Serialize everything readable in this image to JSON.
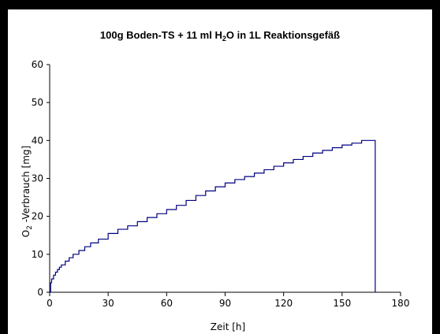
{
  "chart_data": {
    "type": "line",
    "title_main": "100g Boden-TS + 11 ml H",
    "title_sub": "2",
    "title_end": "O in 1L Reaktionsgefäß",
    "ylabel_main": "O",
    "ylabel_sub": "2",
    "ylabel_end": " -Verbrauch [mg]",
    "xlabel": "Zeit [h]",
    "xlim": [
      0,
      180
    ],
    "ylim": [
      0,
      60
    ],
    "x_ticks": [
      0,
      30,
      60,
      90,
      120,
      150,
      180
    ],
    "y_ticks": [
      0,
      10,
      20,
      30,
      40,
      50,
      60
    ],
    "grid": false,
    "line_color": "#000080",
    "series": [
      {
        "x": [
          0,
          0.5,
          1,
          2,
          3,
          4,
          5,
          6,
          8,
          10,
          12,
          15,
          18,
          21,
          25,
          30,
          35,
          40,
          45,
          50,
          55,
          60,
          65,
          70,
          75,
          80,
          85,
          90,
          95,
          100,
          105,
          110,
          115,
          120,
          125,
          130,
          135,
          140,
          145,
          150,
          155,
          160,
          166,
          166.5,
          167,
          167
        ],
        "y": [
          0,
          2.5,
          3.5,
          4.5,
          5.3,
          6,
          6.6,
          7.2,
          8.2,
          9.1,
          10,
          11,
          12,
          13,
          14,
          15.5,
          16.6,
          17.5,
          18.6,
          19.7,
          20.7,
          21.8,
          22.9,
          24.2,
          25.5,
          26.7,
          27.8,
          28.8,
          29.7,
          30.5,
          31.4,
          32.3,
          33.2,
          34.1,
          35,
          35.8,
          36.7,
          37.4,
          38.1,
          38.8,
          39.3,
          40,
          40,
          40,
          14,
          0
        ]
      }
    ]
  }
}
